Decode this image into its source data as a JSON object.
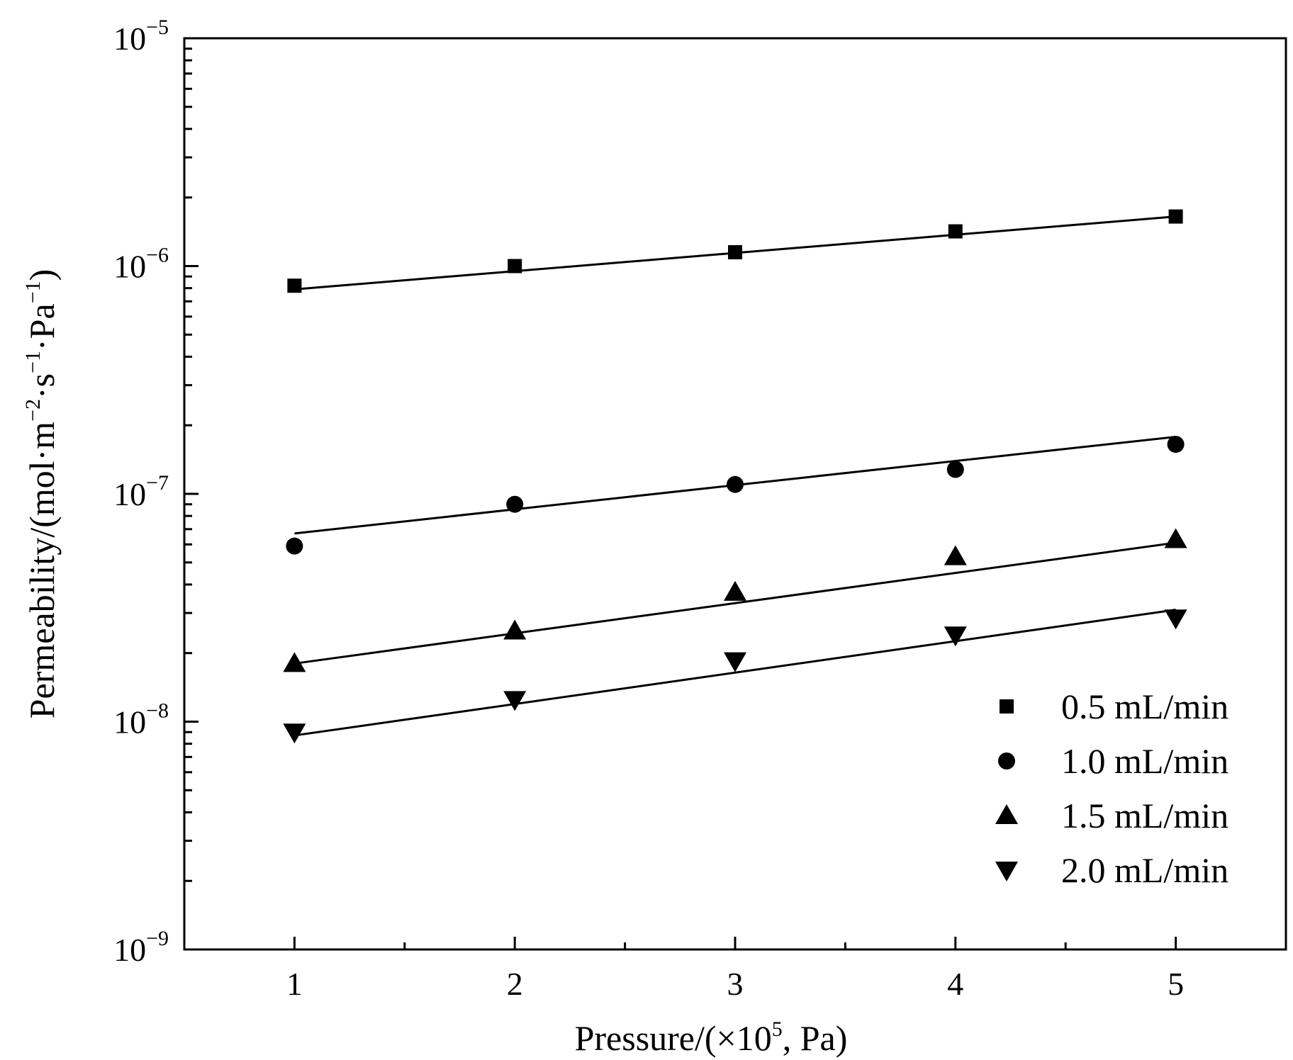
{
  "chart_data": {
    "type": "scatter",
    "title": "",
    "xlabel": {
      "prefix": "Pressure/(×10",
      "sup": "5",
      "suffix": ", Pa)"
    },
    "ylabel": {
      "parts": [
        {
          "t": "Permeability/(mol·m"
        },
        {
          "t": "−2",
          "sup": true
        },
        {
          "t": "·s"
        },
        {
          "t": "−1",
          "sup": true
        },
        {
          "t": "·Pa"
        },
        {
          "t": "−1",
          "sup": true
        },
        {
          "t": ")"
        }
      ]
    },
    "x_scale": "linear",
    "y_scale": "log",
    "xlim": [
      0.5,
      5.5
    ],
    "ylim": [
      1e-09,
      1e-05
    ],
    "x_ticks": [
      1,
      2,
      3,
      4,
      5
    ],
    "x_tick_labels": [
      "1",
      "2",
      "3",
      "4",
      "5"
    ],
    "y_ticks": [
      {
        "value": 1e-09,
        "base": "10",
        "exp": "−9"
      },
      {
        "value": 1e-08,
        "base": "10",
        "exp": "−8"
      },
      {
        "value": 1e-07,
        "base": "10",
        "exp": "−7"
      },
      {
        "value": 1e-06,
        "base": "10",
        "exp": "−6"
      },
      {
        "value": 1e-05,
        "base": "10",
        "exp": "−5"
      }
    ],
    "grid": false,
    "legend_position": "bottom-right",
    "series": [
      {
        "name": "0.5 mL/min",
        "marker": "square",
        "x": [
          1,
          2,
          3,
          4,
          5
        ],
        "y": [
          8.2e-07,
          1e-06,
          1.15e-06,
          1.42e-06,
          1.65e-06
        ],
        "fit": {
          "x": [
            1,
            5
          ],
          "y": [
            7.9e-07,
            1.65e-06
          ]
        }
      },
      {
        "name": "1.0 mL/min",
        "marker": "circle",
        "x": [
          1,
          2,
          3,
          4,
          5
        ],
        "y": [
          5.9e-08,
          9e-08,
          1.1e-07,
          1.28e-07,
          1.65e-07
        ],
        "fit": {
          "x": [
            1,
            5
          ],
          "y": [
            6.7e-08,
            1.78e-07
          ]
        }
      },
      {
        "name": "1.5 mL/min",
        "marker": "triangle-up",
        "x": [
          1,
          2,
          3,
          4,
          5
        ],
        "y": [
          1.8e-08,
          2.5e-08,
          3.7e-08,
          5.3e-08,
          6.3e-08
        ],
        "fit": {
          "x": [
            1,
            5
          ],
          "y": [
            1.8e-08,
            6.1e-08
          ]
        }
      },
      {
        "name": "2.0 mL/min",
        "marker": "triangle-down",
        "x": [
          1,
          2,
          3,
          4,
          5
        ],
        "y": [
          9e-09,
          1.25e-08,
          1.85e-08,
          2.4e-08,
          2.85e-08
        ],
        "fit": {
          "x": [
            1,
            5
          ],
          "y": [
            8.7e-09,
            3.1e-08
          ]
        }
      }
    ]
  }
}
